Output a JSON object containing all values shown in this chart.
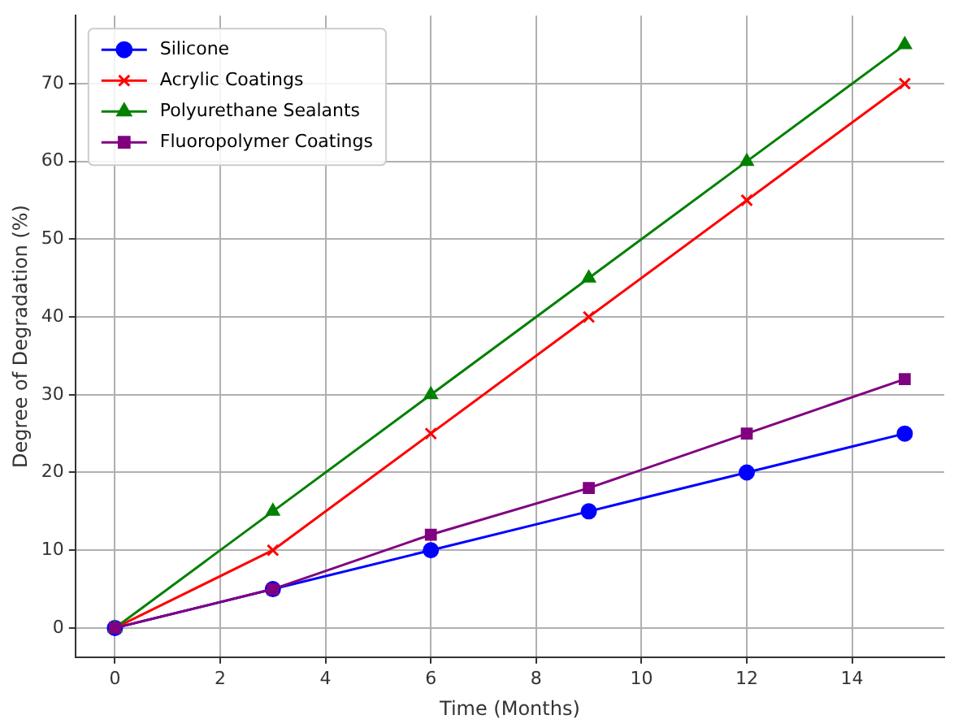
{
  "chart_data": {
    "type": "line",
    "xlabel": "Time (Months)",
    "ylabel": "Degree of Degradation (%)",
    "x": [
      0,
      3,
      6,
      9,
      12,
      15
    ],
    "series": [
      {
        "name": "Silicone",
        "color": "#0000ff",
        "marker": "circle",
        "values": [
          0,
          5,
          10,
          15,
          20,
          25
        ]
      },
      {
        "name": "Acrylic Coatings",
        "color": "#ff0000",
        "marker": "cross",
        "values": [
          0,
          10,
          25,
          40,
          55,
          70
        ]
      },
      {
        "name": "Polyurethane Sealants",
        "color": "#008000",
        "marker": "triangle",
        "values": [
          0,
          15,
          30,
          45,
          60,
          75
        ]
      },
      {
        "name": "Fluoropolymer Coatings",
        "color": "#800080",
        "marker": "square",
        "values": [
          0,
          5,
          12,
          18,
          25,
          32
        ]
      }
    ],
    "xlim": [
      -0.75,
      15.75
    ],
    "xticks": [
      0,
      2,
      4,
      6,
      8,
      10,
      12,
      14
    ],
    "ylim": [
      -3.75,
      78.75
    ],
    "yticks": [
      0,
      10,
      20,
      30,
      40,
      50,
      60,
      70
    ],
    "grid": true,
    "legend": "top left",
    "line_style": "solid"
  }
}
